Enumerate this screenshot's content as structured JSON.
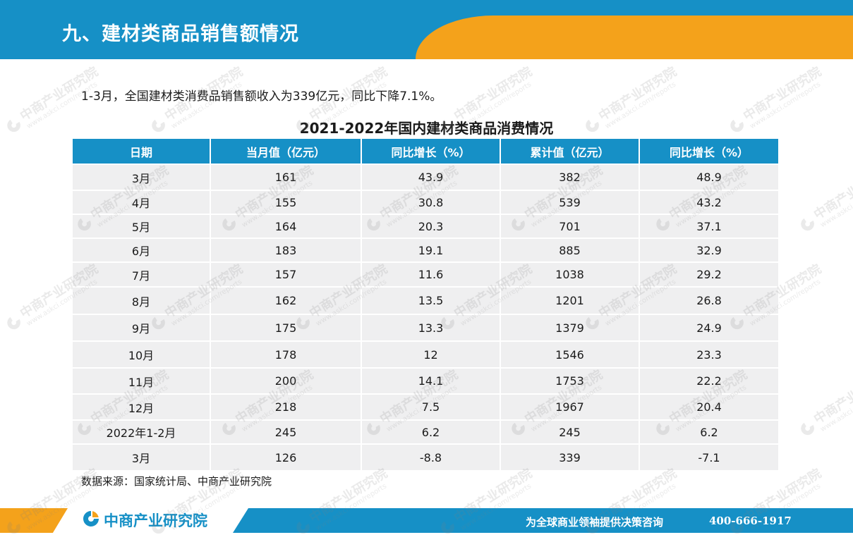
{
  "header": {
    "title": "九、建材类商品销售额情况",
    "bar_color": "#1690c6",
    "accent_color": "#f4a21b"
  },
  "lead_text": "1-3月，全国建材类消费品销售额收入为339亿元，同比下降7.1%。",
  "table": {
    "title": "2021-2022年国内建材类商品消费情况",
    "columns": [
      "日期",
      "当月值（亿元）",
      "同比增长（%）",
      "累计值（亿元）",
      "同比增长（%）"
    ],
    "rows": [
      [
        "3月",
        "161",
        "43.9",
        "382",
        "48.9"
      ],
      [
        "4月",
        "155",
        "30.8",
        "539",
        "43.2"
      ],
      [
        "5月",
        "164",
        "20.3",
        "701",
        "37.1"
      ],
      [
        "6月",
        "183",
        "19.1",
        "885",
        "32.9"
      ],
      [
        "7月",
        "157",
        "11.6",
        "1038",
        "29.2"
      ],
      [
        "8月",
        "162",
        "13.5",
        "1201",
        "26.8"
      ],
      [
        "9月",
        "175",
        "13.3",
        "1379",
        "24.9"
      ],
      [
        "10月",
        "178",
        "12",
        "1546",
        "23.3"
      ],
      [
        "11月",
        "200",
        "14.1",
        "1753",
        "22.2"
      ],
      [
        "12月",
        "218",
        "7.5",
        "1967",
        "20.4"
      ],
      [
        "2022年1-2月",
        "245",
        "6.2",
        "245",
        "6.2"
      ],
      [
        "3月",
        "126",
        "-8.8",
        "339",
        "-7.1"
      ]
    ]
  },
  "source": "数据来源：国家统计局、中商产业研究院",
  "footer": {
    "logo_name": "中商产业研究院",
    "logo_icon": "askci-logo-icon",
    "slogan": "为全球商业领袖提供决策咨询",
    "phone": "400-666-1917"
  },
  "watermark": {
    "name": "中商产业研究院",
    "url": "www.askci.com/reports"
  }
}
